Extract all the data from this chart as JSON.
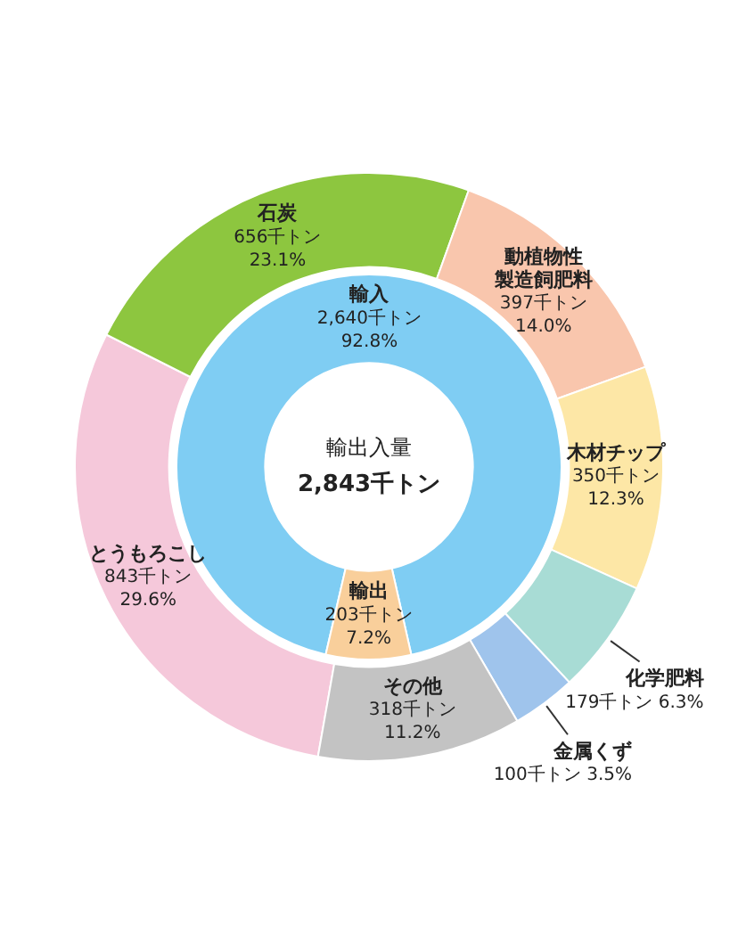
{
  "chart_data": [
    {
      "type": "donut",
      "categories": [
        "とうもろこし",
        "石炭",
        "動植物性製造飼肥料",
        "木材チップ",
        "化学肥料",
        "金属くず",
        "その他"
      ],
      "values": [
        843,
        656,
        397,
        350,
        179,
        100,
        318
      ],
      "value_labels": [
        "843千トン\n29.6%",
        "656千トン\n23.1%",
        "397千トン\n14.0%",
        "350千トン\n12.3%",
        "179千トン 6.3%",
        "100千トン 3.5%",
        "318千トン\n11.2%"
      ],
      "colors": [
        "#f5c8da",
        "#8dc63f",
        "#f9c6ad",
        "#fde7a6",
        "#a8dcd5",
        "#9fc4ec",
        "#c3c3c3"
      ]
    },
    {
      "type": "donut",
      "title": "輸出入量",
      "subtitle": "2,843千トン",
      "categories": [
        "輸入",
        "輸出"
      ],
      "values": [
        2640,
        203
      ],
      "value_labels": [
        "2,640千トン\n92.8%",
        "203千トン\n7.2%"
      ],
      "colors": [
        "#7fcdf3",
        "#f9cf9b"
      ]
    }
  ]
}
